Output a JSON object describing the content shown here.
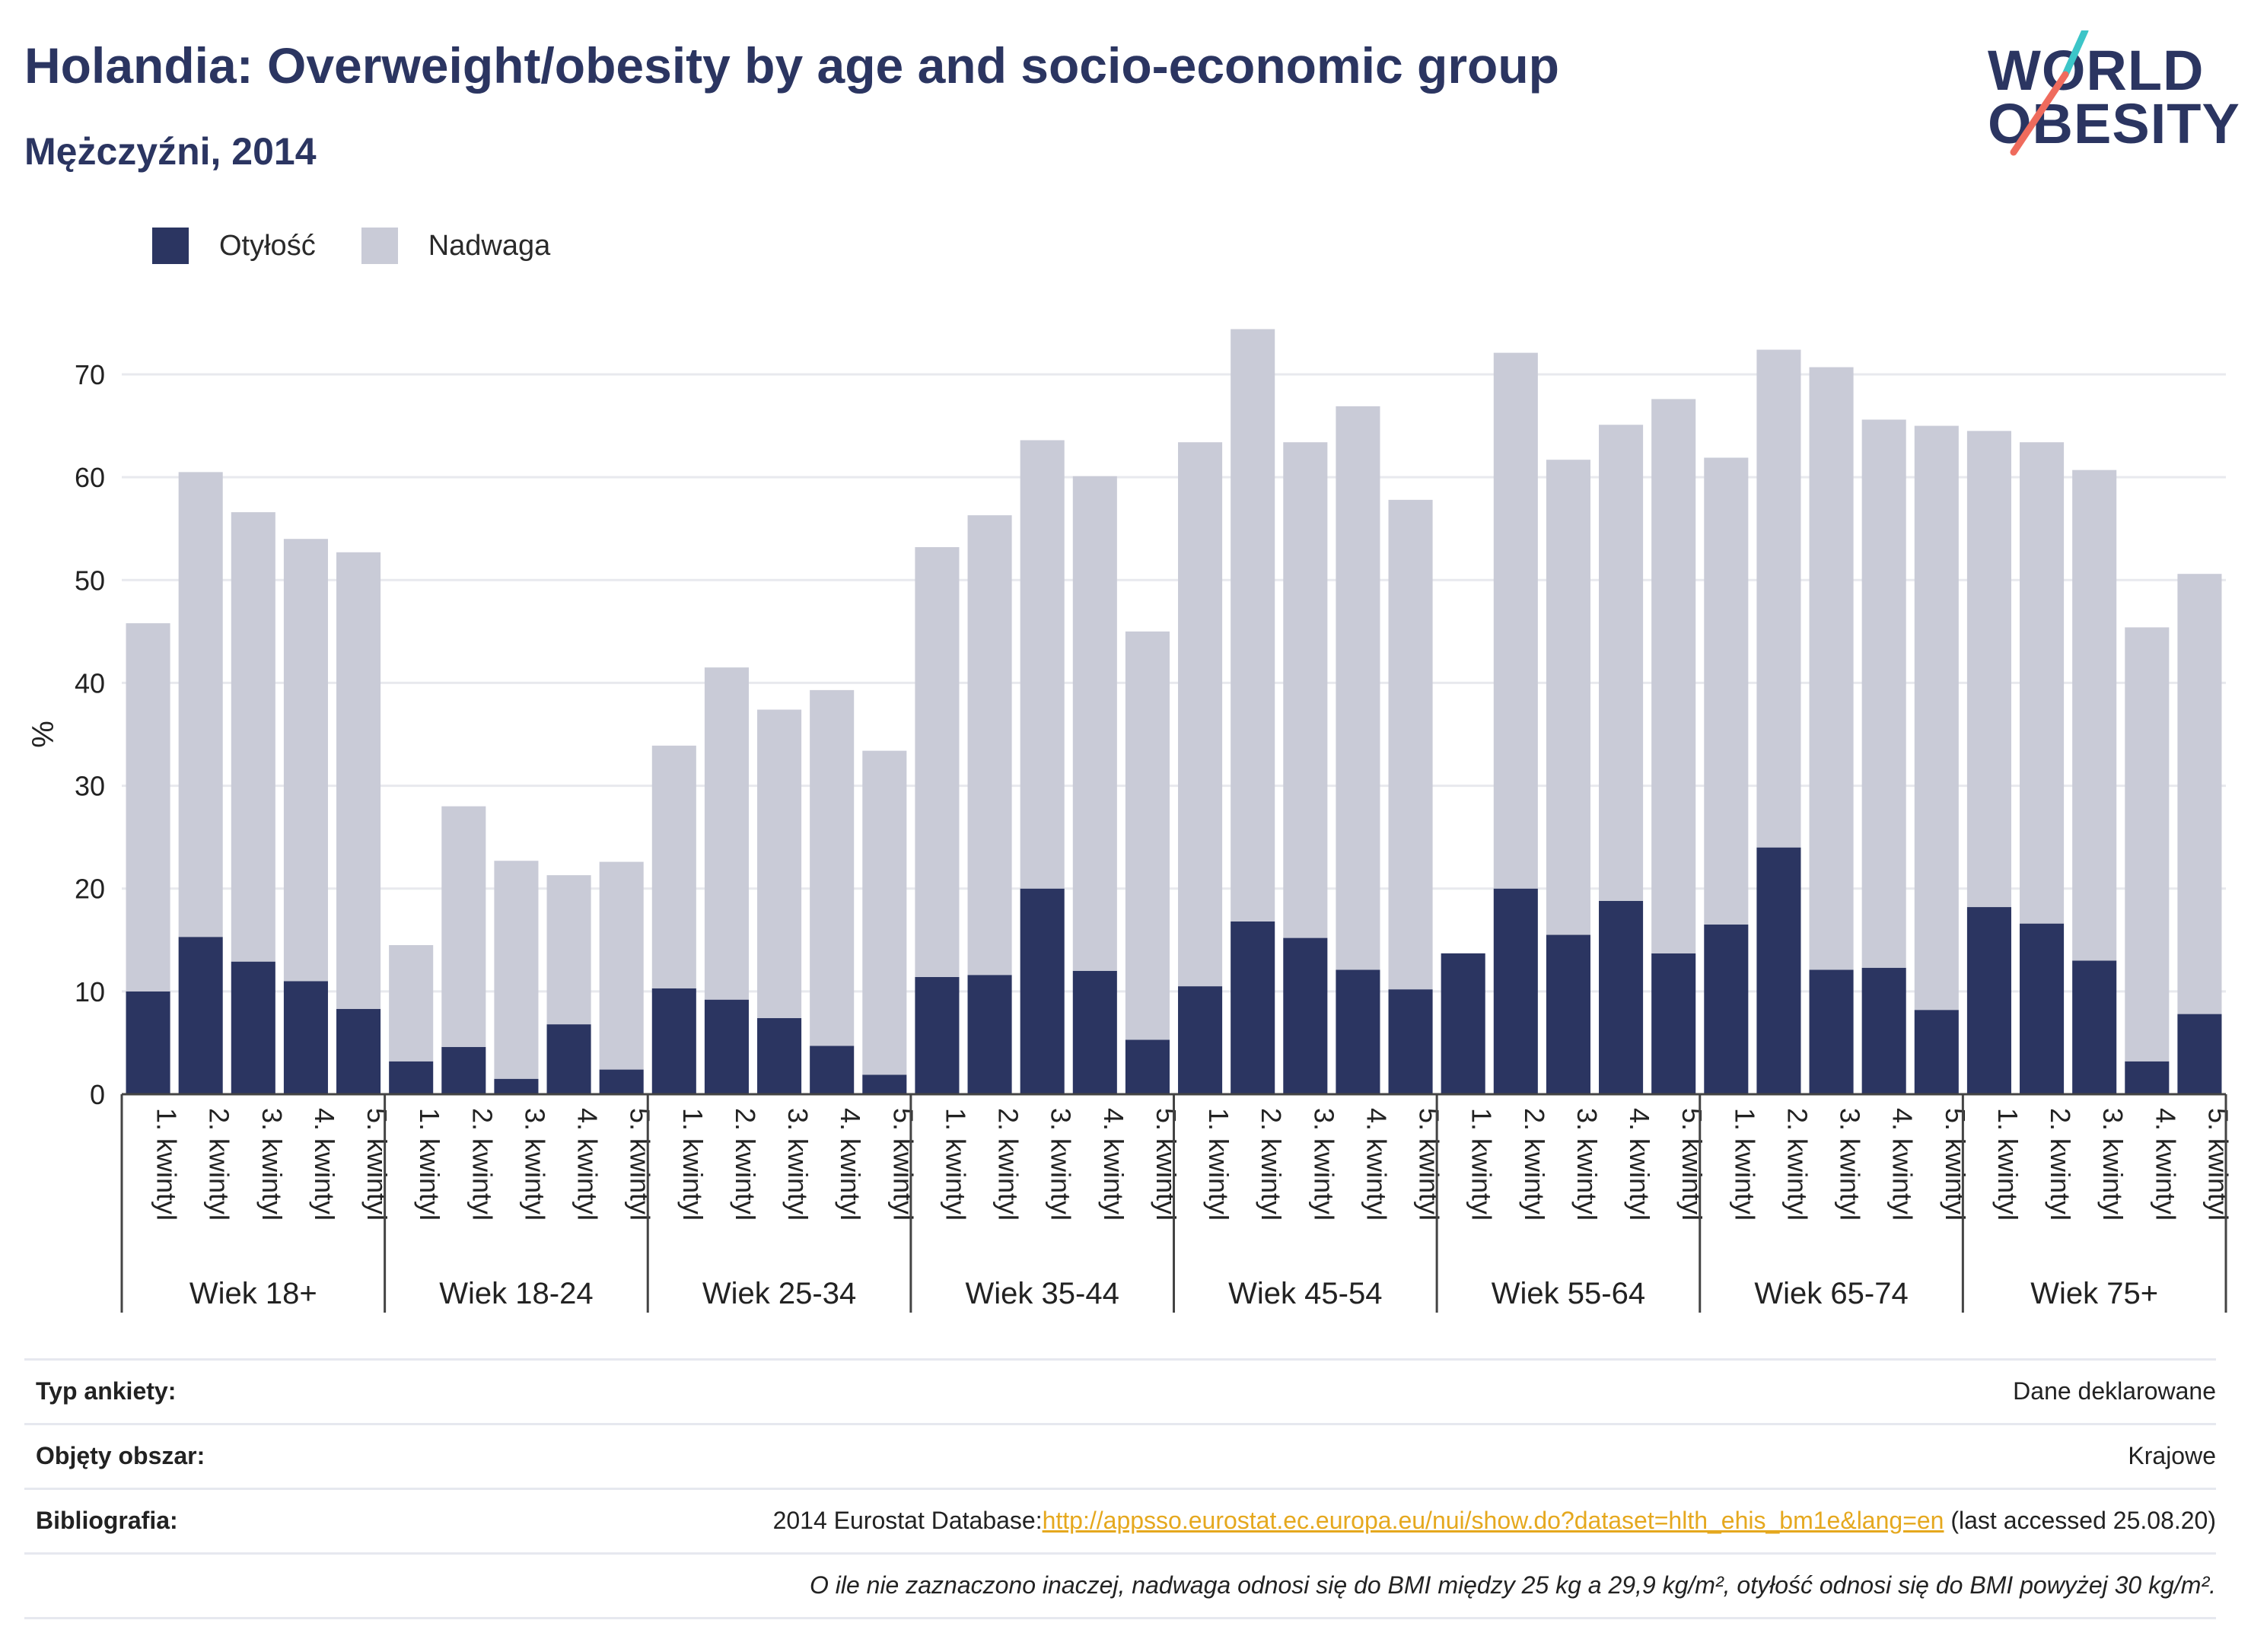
{
  "header": {
    "title": "Holandia: Overweight/obesity by age and socio-economic group",
    "subtitle": "Mężczyźni, 2014"
  },
  "logo": {
    "line1": "WORLD",
    "line2": "OBESITY",
    "colors": {
      "text": "#2b3561",
      "slash_top": "#3cc5c8",
      "slash_bottom": "#ef6b5d"
    }
  },
  "chart_data": {
    "type": "bar",
    "stacked": true,
    "ylabel": "%",
    "ylim": [
      0,
      76
    ],
    "yticks": [
      0,
      10,
      20,
      30,
      40,
      50,
      60,
      70
    ],
    "grid": true,
    "legend_position": "top-left",
    "groups": [
      "Wiek 18+",
      "Wiek 18-24",
      "Wiek 25-34",
      "Wiek 35-44",
      "Wiek 45-54",
      "Wiek 55-64",
      "Wiek 65-74",
      "Wiek 75+"
    ],
    "categories": [
      "1. kwintyl",
      "2. kwintyl",
      "3. kwintyl",
      "4. kwintyl",
      "5. kwintyl"
    ],
    "series": [
      {
        "name": "Otyłość",
        "color": "#2b3561",
        "values": [
          [
            10.0,
            15.3,
            12.9,
            11.0,
            8.3
          ],
          [
            3.2,
            4.6,
            1.5,
            6.8,
            2.4
          ],
          [
            10.3,
            9.2,
            7.4,
            4.7,
            1.9
          ],
          [
            11.4,
            11.6,
            20.0,
            12.0,
            5.3
          ],
          [
            10.5,
            16.8,
            15.2,
            12.1,
            10.2
          ],
          [
            13.7,
            20.0,
            15.5,
            18.8,
            13.7
          ],
          [
            16.5,
            24.0,
            12.1,
            12.3,
            8.2
          ],
          [
            18.2,
            16.6,
            13.0,
            3.2,
            7.8
          ]
        ]
      },
      {
        "name": "Nadwaga",
        "color": "#c9cbd7",
        "values": [
          [
            35.8,
            45.2,
            43.7,
            43.0,
            44.4
          ],
          [
            11.3,
            23.4,
            21.2,
            14.5,
            20.2
          ],
          [
            23.6,
            32.3,
            30.0,
            34.6,
            31.5
          ],
          [
            41.8,
            44.7,
            43.6,
            48.1,
            39.7
          ],
          [
            52.9,
            57.6,
            48.2,
            54.8,
            47.6
          ],
          [
            0.0,
            52.1,
            46.2,
            46.3,
            53.9
          ],
          [
            45.4,
            48.4,
            58.6,
            53.3,
            56.8
          ],
          [
            46.3,
            46.8,
            47.7,
            42.2,
            42.8
          ]
        ]
      }
    ]
  },
  "footer": {
    "survey_type_label": "Typ ankiety:",
    "survey_type_value": "Dane deklarowane",
    "coverage_label": "Objęty obszar:",
    "coverage_value": "Krajowe",
    "bibliography_label": "Bibliografia:",
    "bibliography_prefix": "2014 Eurostat Database:",
    "bibliography_link": "http://appsso.eurostat.ec.europa.eu/nui/show.do?dataset=hlth_ehis_bm1e&lang=en",
    "bibliography_suffix": " (last accessed 25.08.20)",
    "note": "O ile nie zaznaczono inaczej, nadwaga odnosi się do BMI między 25 kg a 29,9 kg/m², otyłość odnosi się do BMI powyżej 30 kg/m²."
  }
}
